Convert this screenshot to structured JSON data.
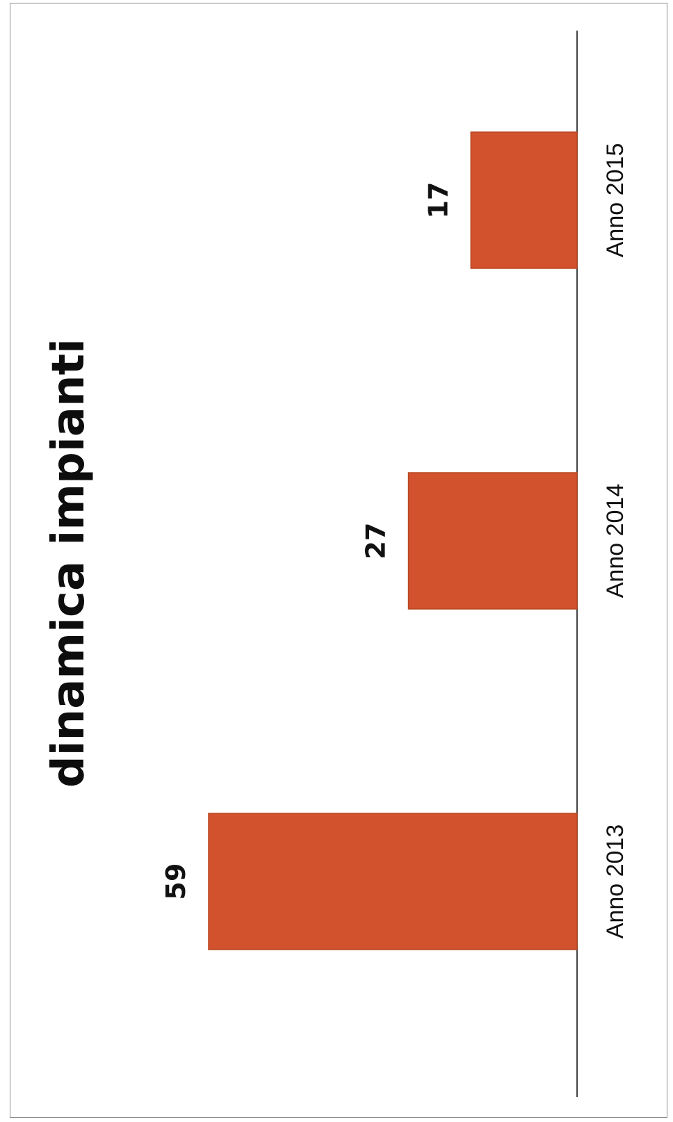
{
  "chart_data": {
    "type": "bar",
    "title": "dinamica impianti",
    "categories": [
      "Anno 2013",
      "Anno 2014",
      "Anno 2015"
    ],
    "values": [
      59,
      27,
      17
    ],
    "value_labels": [
      "59",
      "27",
      "17"
    ],
    "ylim": [
      0,
      60
    ],
    "grid": false,
    "orientation": "rotated 90 degrees clockwise",
    "colors": {
      "bar": "#d2522e",
      "bar_edge": "#b8441f",
      "axis": "#444444"
    }
  }
}
